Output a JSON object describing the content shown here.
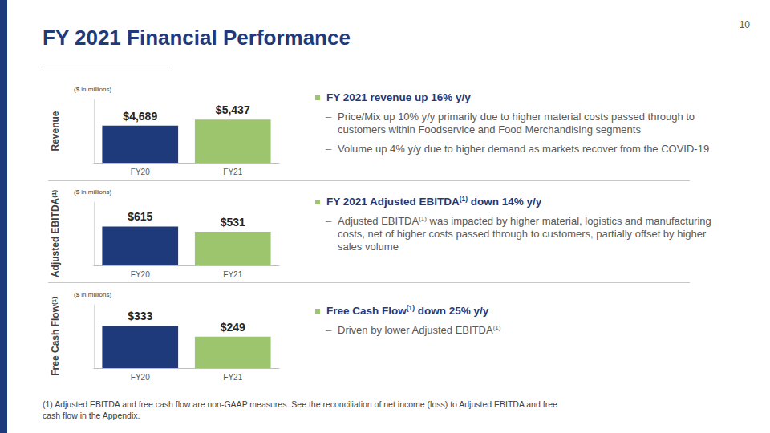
{
  "page": {
    "title": "FY 2021 Financial Performance",
    "page_number": "10",
    "sections": [
      {
        "heading": "FY 2021 revenue up 16% y/y",
        "items": [
          "Price/Mix up 10% y/y primarily due to higher material costs passed through to customers within Foodservice and Food Merchandising segments",
          "Volume up 4% y/y due to higher demand as markets recover from the COVID-19"
        ]
      },
      {
        "heading": "FY 2021 Adjusted EBITDA(1) down 14% y/y",
        "items": [
          "Adjusted EBITDA(1) was impacted by higher material, logistics and manufacturing costs, net of higher costs passed through to customers, partially offset by higher sales volume"
        ]
      },
      {
        "heading": "Free Cash Flow(1) down 25% y/y",
        "items": [
          "Driven by lower Adjusted EBITDA(1)"
        ]
      }
    ],
    "footnote": "(1) Adjusted EBITDA and free cash flow are non-GAAP measures. See the reconciliation of net income (loss) to Adjusted EBITDA and free cash flow in the Appendix."
  },
  "chart_data": [
    {
      "type": "bar",
      "subtitle": "($ in millions)",
      "ylabel": "Revenue",
      "categories": [
        "FY20",
        "FY21"
      ],
      "values": [
        4689,
        5437
      ],
      "value_labels": [
        "$4,689",
        "$5,437"
      ],
      "colors": [
        "#1f3a7a",
        "#9dc56e"
      ],
      "ylim": [
        0,
        8000
      ],
      "data_labels": true,
      "tick_labels": "x",
      "grid": false
    },
    {
      "type": "bar",
      "subtitle": "($ in millions)",
      "ylabel": "Adjusted EBITDA(1)",
      "categories": [
        "FY20",
        "FY21"
      ],
      "values": [
        615,
        531
      ],
      "value_labels": [
        "$615",
        "$531"
      ],
      "colors": [
        "#1f3a7a",
        "#9dc56e"
      ],
      "ylim": [
        0,
        1000
      ],
      "data_labels": true,
      "tick_labels": "x",
      "grid": false
    },
    {
      "type": "bar",
      "subtitle": "($ in millions)",
      "ylabel": "Free Cash Flow(1)",
      "categories": [
        "FY20",
        "FY21"
      ],
      "values": [
        333,
        249
      ],
      "value_labels": [
        "$333",
        "$249"
      ],
      "colors": [
        "#1f3a7a",
        "#9dc56e"
      ],
      "ylim": [
        0,
        500
      ],
      "data_labels": true,
      "tick_labels": "x",
      "grid": false
    }
  ]
}
